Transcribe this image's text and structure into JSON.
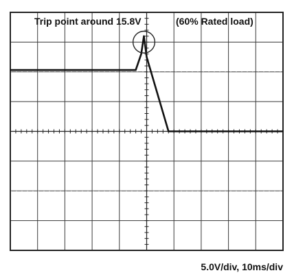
{
  "chart_data": {
    "type": "line",
    "title": "Trip point around 15.8V",
    "subtitle": "(60% Rated load)",
    "scale_label": "5.0V/div,  10ms/div",
    "x_divisions": 10,
    "y_divisions": 8,
    "grid": true,
    "series": [
      {
        "points": [
          {
            "x": 0.0,
            "y": 6.06
          },
          {
            "x": 4.6,
            "y": 6.06
          },
          {
            "x": 4.8,
            "y": 6.6
          },
          {
            "x": 4.9,
            "y": 7.2
          },
          {
            "x": 5.0,
            "y": 6.5
          },
          {
            "x": 5.8,
            "y": 4.0
          },
          {
            "x": 10.0,
            "y": 4.0
          }
        ]
      }
    ],
    "annotations": [
      {
        "type": "circle",
        "x": 4.9,
        "y": 7.0,
        "r_div": 0.4
      }
    ]
  }
}
